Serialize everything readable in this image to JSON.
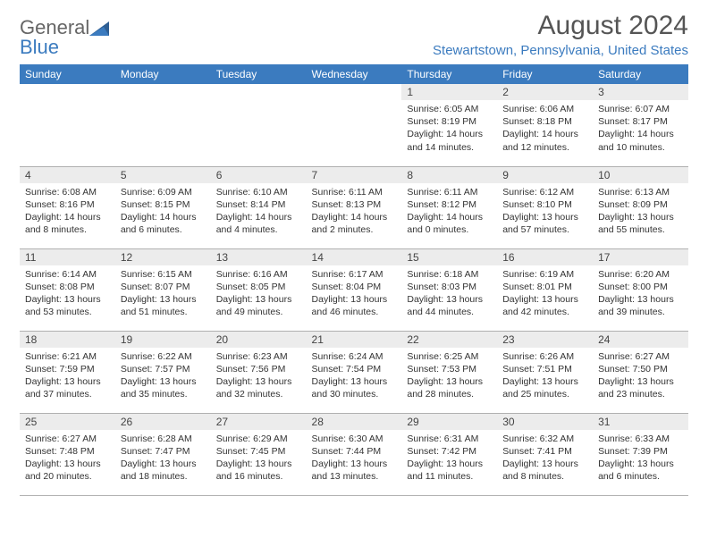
{
  "logo": {
    "line1": "General",
    "line2": "Blue"
  },
  "title": "August 2024",
  "location": "Stewartstown, Pennsylvania, United States",
  "day_headers": [
    "Sunday",
    "Monday",
    "Tuesday",
    "Wednesday",
    "Thursday",
    "Friday",
    "Saturday"
  ],
  "colors": {
    "header_bg": "#3b7bbf",
    "header_text": "#ffffff",
    "daynum_bg": "#ececec",
    "accent": "#3b7bbf",
    "text": "#333333"
  },
  "weeks": [
    [
      {
        "n": "",
        "sr": "",
        "ss": "",
        "dl": ""
      },
      {
        "n": "",
        "sr": "",
        "ss": "",
        "dl": ""
      },
      {
        "n": "",
        "sr": "",
        "ss": "",
        "dl": ""
      },
      {
        "n": "",
        "sr": "",
        "ss": "",
        "dl": ""
      },
      {
        "n": "1",
        "sr": "Sunrise: 6:05 AM",
        "ss": "Sunset: 8:19 PM",
        "dl": "Daylight: 14 hours and 14 minutes."
      },
      {
        "n": "2",
        "sr": "Sunrise: 6:06 AM",
        "ss": "Sunset: 8:18 PM",
        "dl": "Daylight: 14 hours and 12 minutes."
      },
      {
        "n": "3",
        "sr": "Sunrise: 6:07 AM",
        "ss": "Sunset: 8:17 PM",
        "dl": "Daylight: 14 hours and 10 minutes."
      }
    ],
    [
      {
        "n": "4",
        "sr": "Sunrise: 6:08 AM",
        "ss": "Sunset: 8:16 PM",
        "dl": "Daylight: 14 hours and 8 minutes."
      },
      {
        "n": "5",
        "sr": "Sunrise: 6:09 AM",
        "ss": "Sunset: 8:15 PM",
        "dl": "Daylight: 14 hours and 6 minutes."
      },
      {
        "n": "6",
        "sr": "Sunrise: 6:10 AM",
        "ss": "Sunset: 8:14 PM",
        "dl": "Daylight: 14 hours and 4 minutes."
      },
      {
        "n": "7",
        "sr": "Sunrise: 6:11 AM",
        "ss": "Sunset: 8:13 PM",
        "dl": "Daylight: 14 hours and 2 minutes."
      },
      {
        "n": "8",
        "sr": "Sunrise: 6:11 AM",
        "ss": "Sunset: 8:12 PM",
        "dl": "Daylight: 14 hours and 0 minutes."
      },
      {
        "n": "9",
        "sr": "Sunrise: 6:12 AM",
        "ss": "Sunset: 8:10 PM",
        "dl": "Daylight: 13 hours and 57 minutes."
      },
      {
        "n": "10",
        "sr": "Sunrise: 6:13 AM",
        "ss": "Sunset: 8:09 PM",
        "dl": "Daylight: 13 hours and 55 minutes."
      }
    ],
    [
      {
        "n": "11",
        "sr": "Sunrise: 6:14 AM",
        "ss": "Sunset: 8:08 PM",
        "dl": "Daylight: 13 hours and 53 minutes."
      },
      {
        "n": "12",
        "sr": "Sunrise: 6:15 AM",
        "ss": "Sunset: 8:07 PM",
        "dl": "Daylight: 13 hours and 51 minutes."
      },
      {
        "n": "13",
        "sr": "Sunrise: 6:16 AM",
        "ss": "Sunset: 8:05 PM",
        "dl": "Daylight: 13 hours and 49 minutes."
      },
      {
        "n": "14",
        "sr": "Sunrise: 6:17 AM",
        "ss": "Sunset: 8:04 PM",
        "dl": "Daylight: 13 hours and 46 minutes."
      },
      {
        "n": "15",
        "sr": "Sunrise: 6:18 AM",
        "ss": "Sunset: 8:03 PM",
        "dl": "Daylight: 13 hours and 44 minutes."
      },
      {
        "n": "16",
        "sr": "Sunrise: 6:19 AM",
        "ss": "Sunset: 8:01 PM",
        "dl": "Daylight: 13 hours and 42 minutes."
      },
      {
        "n": "17",
        "sr": "Sunrise: 6:20 AM",
        "ss": "Sunset: 8:00 PM",
        "dl": "Daylight: 13 hours and 39 minutes."
      }
    ],
    [
      {
        "n": "18",
        "sr": "Sunrise: 6:21 AM",
        "ss": "Sunset: 7:59 PM",
        "dl": "Daylight: 13 hours and 37 minutes."
      },
      {
        "n": "19",
        "sr": "Sunrise: 6:22 AM",
        "ss": "Sunset: 7:57 PM",
        "dl": "Daylight: 13 hours and 35 minutes."
      },
      {
        "n": "20",
        "sr": "Sunrise: 6:23 AM",
        "ss": "Sunset: 7:56 PM",
        "dl": "Daylight: 13 hours and 32 minutes."
      },
      {
        "n": "21",
        "sr": "Sunrise: 6:24 AM",
        "ss": "Sunset: 7:54 PM",
        "dl": "Daylight: 13 hours and 30 minutes."
      },
      {
        "n": "22",
        "sr": "Sunrise: 6:25 AM",
        "ss": "Sunset: 7:53 PM",
        "dl": "Daylight: 13 hours and 28 minutes."
      },
      {
        "n": "23",
        "sr": "Sunrise: 6:26 AM",
        "ss": "Sunset: 7:51 PM",
        "dl": "Daylight: 13 hours and 25 minutes."
      },
      {
        "n": "24",
        "sr": "Sunrise: 6:27 AM",
        "ss": "Sunset: 7:50 PM",
        "dl": "Daylight: 13 hours and 23 minutes."
      }
    ],
    [
      {
        "n": "25",
        "sr": "Sunrise: 6:27 AM",
        "ss": "Sunset: 7:48 PM",
        "dl": "Daylight: 13 hours and 20 minutes."
      },
      {
        "n": "26",
        "sr": "Sunrise: 6:28 AM",
        "ss": "Sunset: 7:47 PM",
        "dl": "Daylight: 13 hours and 18 minutes."
      },
      {
        "n": "27",
        "sr": "Sunrise: 6:29 AM",
        "ss": "Sunset: 7:45 PM",
        "dl": "Daylight: 13 hours and 16 minutes."
      },
      {
        "n": "28",
        "sr": "Sunrise: 6:30 AM",
        "ss": "Sunset: 7:44 PM",
        "dl": "Daylight: 13 hours and 13 minutes."
      },
      {
        "n": "29",
        "sr": "Sunrise: 6:31 AM",
        "ss": "Sunset: 7:42 PM",
        "dl": "Daylight: 13 hours and 11 minutes."
      },
      {
        "n": "30",
        "sr": "Sunrise: 6:32 AM",
        "ss": "Sunset: 7:41 PM",
        "dl": "Daylight: 13 hours and 8 minutes."
      },
      {
        "n": "31",
        "sr": "Sunrise: 6:33 AM",
        "ss": "Sunset: 7:39 PM",
        "dl": "Daylight: 13 hours and 6 minutes."
      }
    ]
  ]
}
